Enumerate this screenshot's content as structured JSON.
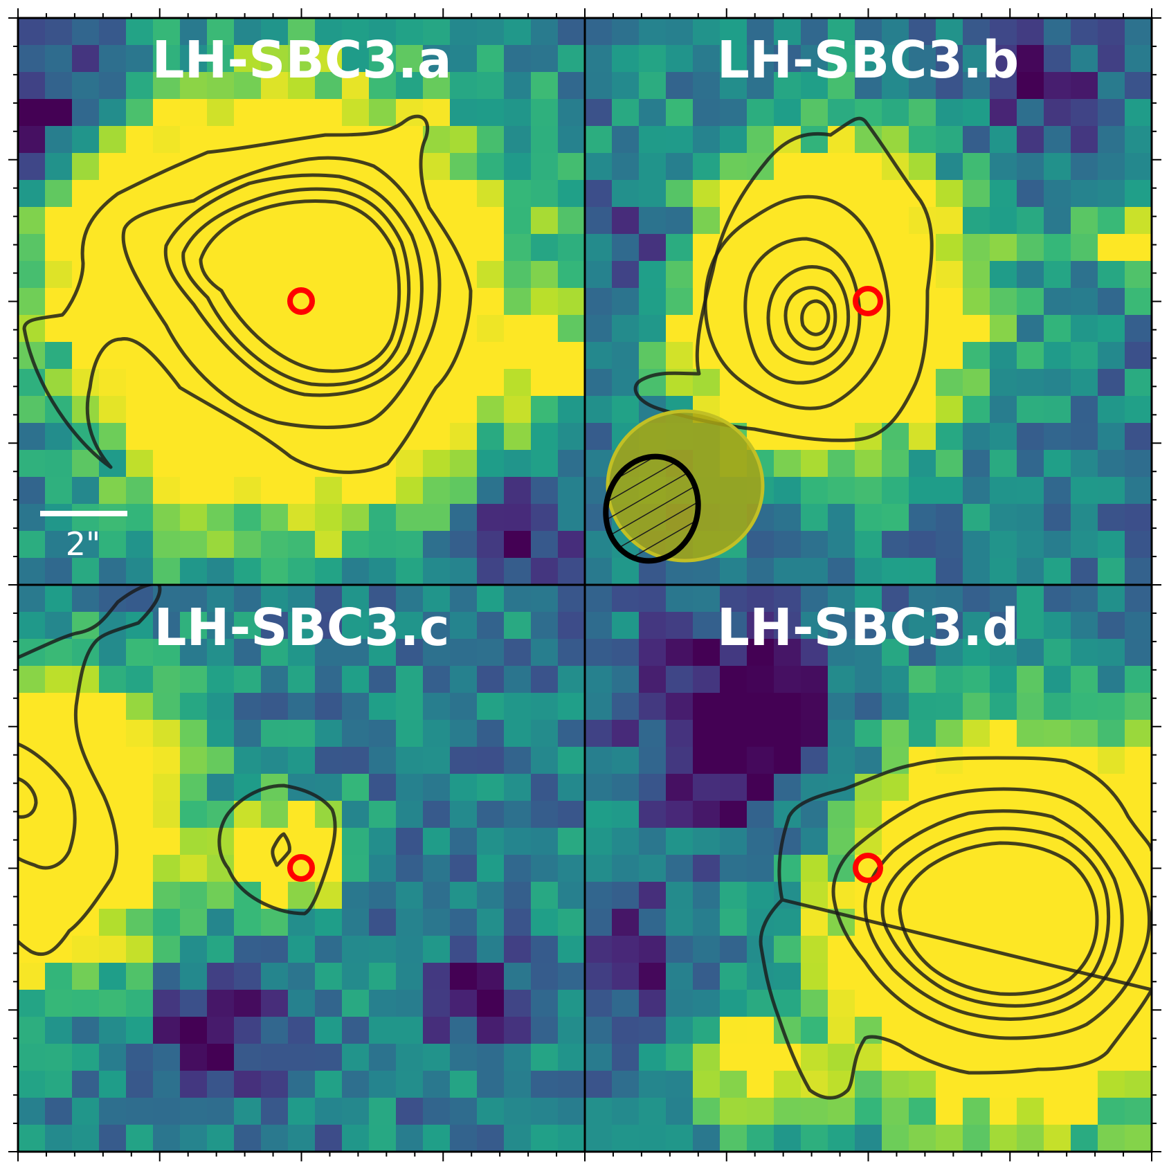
{
  "figure": {
    "panels": [
      {
        "id": "a",
        "title": "LH-SBC3.a",
        "seed": 11,
        "blobs": [
          [
            0.5,
            0.5,
            0.22,
            2.2
          ],
          [
            0.17,
            0.35,
            0.12,
            0.7
          ],
          [
            0.93,
            0.6,
            0.05,
            0.6
          ]
        ],
        "holes": [
          [
            0.05,
            0.2,
            0.1,
            1.2
          ],
          [
            0.88,
            0.88,
            0.07,
            0.9
          ]
        ],
        "contours": "a"
      },
      {
        "id": "b",
        "title": "LH-SBC3.b",
        "seed": 23,
        "blobs": [
          [
            0.42,
            0.5,
            0.16,
            2.0
          ],
          [
            0.97,
            0.4,
            0.05,
            0.8
          ]
        ],
        "holes": [
          [
            0.12,
            0.4,
            0.07,
            0.8
          ],
          [
            0.8,
            0.12,
            0.08,
            0.6
          ]
        ],
        "contours": "b"
      },
      {
        "id": "c",
        "title": "LH-SBC3.c",
        "seed": 37,
        "blobs": [
          [
            0.02,
            0.42,
            0.16,
            1.8
          ],
          [
            0.48,
            0.48,
            0.07,
            0.9
          ]
        ],
        "holes": [
          [
            0.35,
            0.8,
            0.08,
            0.9
          ],
          [
            0.82,
            0.73,
            0.06,
            0.8
          ]
        ],
        "contours": "c"
      },
      {
        "id": "d",
        "title": "LH-SBC3.d",
        "seed": 53,
        "blobs": [
          [
            0.78,
            0.6,
            0.2,
            2.2
          ],
          [
            0.3,
            0.85,
            0.08,
            0.6
          ]
        ],
        "holes": [
          [
            0.28,
            0.25,
            0.12,
            1.3
          ],
          [
            0.05,
            0.65,
            0.08,
            0.8
          ]
        ],
        "contours": "d"
      }
    ],
    "scale_bar_label": "2\"",
    "colors": {
      "marker": "#ff0000",
      "contour": "#1a1a1a",
      "beam_fill": "#a8a414",
      "beam_edge": "#c2c025",
      "frame": "#000000"
    }
  }
}
